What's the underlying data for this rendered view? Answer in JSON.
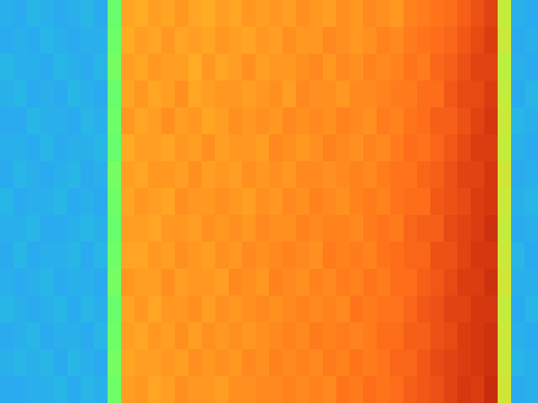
{
  "chart_data": {
    "type": "heatmap",
    "tick_labels": false,
    "zlim": [
      0,
      100
    ],
    "cells": [
      [
        23,
        22,
        24,
        23,
        22,
        23,
        24,
        22,
        44,
        70,
        69,
        71,
        70,
        72,
        70,
        69,
        71,
        70,
        72,
        71,
        72,
        71,
        73,
        72,
        71,
        73,
        72,
        74,
        73,
        72,
        75,
        76,
        77,
        78,
        80,
        82,
        84,
        56,
        23,
        22
      ],
      [
        22,
        23,
        22,
        24,
        23,
        22,
        23,
        23,
        45,
        69,
        71,
        70,
        72,
        70,
        71,
        70,
        72,
        71,
        70,
        72,
        71,
        73,
        72,
        72,
        74,
        73,
        72,
        73,
        75,
        74,
        76,
        77,
        78,
        79,
        81,
        83,
        85,
        57,
        22,
        23
      ],
      [
        24,
        23,
        23,
        22,
        24,
        23,
        22,
        24,
        46,
        71,
        70,
        72,
        71,
        71,
        69,
        72,
        70,
        71,
        73,
        71,
        72,
        72,
        73,
        74,
        72,
        74,
        73,
        75,
        74,
        75,
        77,
        76,
        79,
        80,
        82,
        84,
        84,
        55,
        23,
        22
      ],
      [
        23,
        24,
        22,
        23,
        22,
        24,
        23,
        22,
        44,
        70,
        72,
        70,
        71,
        73,
        70,
        71,
        72,
        72,
        71,
        72,
        73,
        71,
        74,
        73,
        73,
        72,
        74,
        74,
        75,
        76,
        76,
        78,
        78,
        81,
        83,
        83,
        85,
        56,
        22,
        24
      ],
      [
        22,
        22,
        24,
        23,
        23,
        22,
        24,
        23,
        45,
        72,
        70,
        71,
        73,
        71,
        72,
        70,
        71,
        73,
        72,
        73,
        72,
        74,
        73,
        74,
        73,
        75,
        74,
        73,
        76,
        75,
        77,
        78,
        80,
        80,
        82,
        84,
        86,
        57,
        24,
        23
      ],
      [
        23,
        23,
        22,
        24,
        22,
        23,
        23,
        24,
        44,
        69,
        71,
        71,
        70,
        72,
        71,
        73,
        71,
        72,
        72,
        71,
        74,
        73,
        72,
        73,
        75,
        74,
        73,
        75,
        74,
        76,
        78,
        77,
        79,
        81,
        83,
        85,
        85,
        56,
        23,
        22
      ],
      [
        22,
        24,
        23,
        22,
        23,
        24,
        22,
        23,
        46,
        71,
        70,
        72,
        72,
        71,
        73,
        71,
        72,
        71,
        73,
        72,
        73,
        72,
        74,
        74,
        73,
        74,
        75,
        74,
        76,
        77,
        77,
        79,
        80,
        82,
        84,
        84,
        86,
        58,
        22,
        23
      ],
      [
        24,
        22,
        23,
        23,
        24,
        22,
        23,
        22,
        45,
        70,
        72,
        71,
        70,
        73,
        72,
        72,
        73,
        72,
        71,
        73,
        72,
        74,
        73,
        75,
        74,
        73,
        75,
        76,
        75,
        77,
        78,
        78,
        81,
        82,
        83,
        85,
        86,
        57,
        23,
        24
      ],
      [
        23,
        23,
        24,
        22,
        22,
        23,
        24,
        23,
        44,
        71,
        71,
        70,
        72,
        72,
        71,
        73,
        72,
        73,
        72,
        74,
        73,
        73,
        75,
        74,
        75,
        75,
        74,
        76,
        77,
        76,
        79,
        80,
        80,
        83,
        84,
        85,
        87,
        56,
        22,
        23
      ],
      [
        22,
        24,
        22,
        23,
        23,
        24,
        22,
        24,
        45,
        70,
        70,
        72,
        71,
        73,
        72,
        71,
        73,
        72,
        74,
        73,
        74,
        75,
        74,
        73,
        76,
        75,
        76,
        75,
        77,
        78,
        79,
        79,
        82,
        82,
        84,
        86,
        86,
        57,
        24,
        22
      ],
      [
        23,
        22,
        23,
        24,
        22,
        23,
        23,
        22,
        46,
        72,
        71,
        71,
        73,
        71,
        72,
        72,
        71,
        74,
        73,
        72,
        75,
        74,
        73,
        75,
        74,
        76,
        75,
        77,
        76,
        78,
        78,
        80,
        81,
        83,
        85,
        85,
        87,
        58,
        23,
        23
      ],
      [
        24,
        23,
        22,
        23,
        24,
        22,
        24,
        23,
        44,
        70,
        72,
        70,
        72,
        72,
        73,
        71,
        73,
        72,
        73,
        74,
        73,
        74,
        75,
        74,
        75,
        74,
        77,
        76,
        77,
        77,
        79,
        81,
        82,
        84,
        84,
        86,
        86,
        56,
        22,
        24
      ],
      [
        22,
        23,
        24,
        22,
        23,
        23,
        22,
        24,
        45,
        71,
        70,
        72,
        71,
        73,
        71,
        73,
        72,
        73,
        72,
        73,
        74,
        75,
        74,
        76,
        75,
        76,
        75,
        76,
        78,
        78,
        80,
        80,
        82,
        83,
        85,
        86,
        87,
        57,
        23,
        22
      ],
      [
        23,
        24,
        23,
        24,
        22,
        24,
        23,
        22,
        46,
        70,
        71,
        71,
        72,
        71,
        73,
        72,
        73,
        72,
        74,
        73,
        75,
        74,
        75,
        74,
        76,
        75,
        77,
        76,
        77,
        79,
        79,
        81,
        83,
        84,
        85,
        86,
        87,
        57,
        24,
        23
      ],
      [
        22,
        22,
        23,
        23,
        24,
        22,
        24,
        23,
        45,
        71,
        72,
        70,
        71,
        73,
        72,
        72,
        71,
        73,
        73,
        74,
        74,
        75,
        74,
        75,
        74,
        77,
        76,
        78,
        77,
        78,
        80,
        81,
        82,
        84,
        86,
        85,
        88,
        58,
        22,
        23
      ]
    ]
  }
}
